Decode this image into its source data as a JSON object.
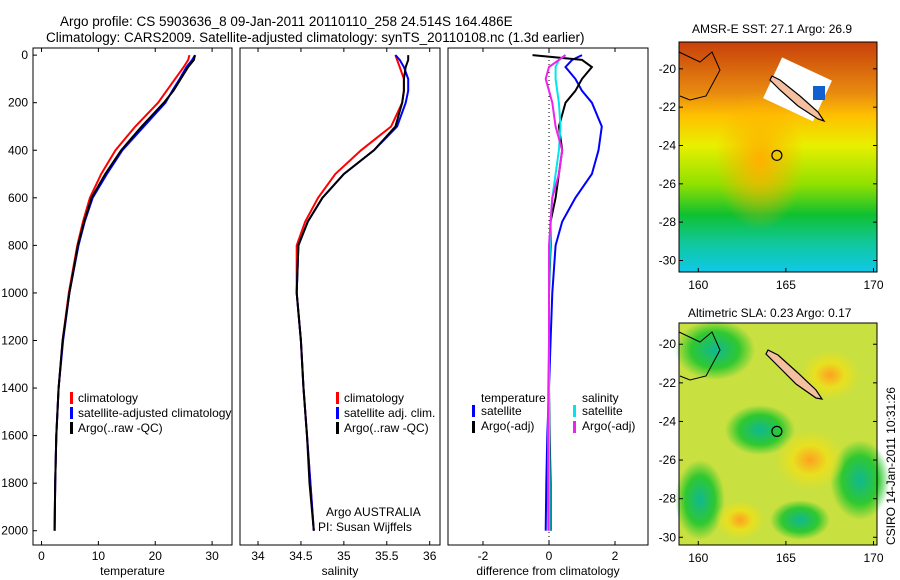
{
  "header": {
    "line1": "Argo profile: CS 5903636_8 09-Jan-2011 20110110_258 24.514S 164.486E",
    "line2": "Climatology: CARS2009. Satellite-adjusted climatology: synTS_20110108.nc (1.3d earlier)"
  },
  "footer_stamp": "CSIRO 14-Jan-2011 10:31:26",
  "colors": {
    "red": "#ff0000",
    "blue": "#0000ff",
    "black": "#000000",
    "cyan": "#00e5ee",
    "magenta": "#ee22ee"
  },
  "chart_data": [
    {
      "type": "line",
      "id": "temperature",
      "xlabel": "temperature",
      "ylabel": "",
      "xlim": [
        -1.5,
        33.5
      ],
      "ylim": [
        2060,
        -30
      ],
      "xticks": [
        0,
        10,
        20,
        30
      ],
      "yticks": [
        0,
        200,
        400,
        600,
        800,
        1000,
        1200,
        1400,
        1600,
        1800,
        2000
      ],
      "depth": [
        0,
        20,
        50,
        100,
        150,
        200,
        300,
        400,
        500,
        600,
        700,
        800,
        1000,
        1200,
        1400,
        1600,
        1800,
        2000
      ],
      "series": [
        {
          "name": "climatology",
          "color": "#ff0000",
          "values": [
            26.0,
            25.8,
            25.0,
            23.5,
            22.0,
            20.5,
            16.5,
            13.0,
            10.5,
            8.5,
            7.3,
            6.3,
            4.8,
            3.7,
            3.0,
            2.6,
            2.4,
            2.3
          ]
        },
        {
          "name": "satellite-adjusted climatology",
          "color": "#0000ff",
          "values": [
            27.0,
            26.5,
            25.5,
            24.3,
            23.0,
            21.8,
            18.0,
            14.2,
            11.5,
            9.0,
            7.6,
            6.5,
            4.9,
            3.8,
            3.0,
            2.6,
            2.4,
            2.3
          ]
        },
        {
          "name": "Argo(..raw -QC)",
          "color": "#000000",
          "values": [
            27.0,
            26.8,
            25.8,
            24.5,
            23.2,
            21.5,
            17.6,
            14.0,
            11.2,
            8.8,
            7.5,
            6.4,
            4.9,
            3.7,
            3.0,
            2.6,
            2.4,
            2.3
          ]
        }
      ],
      "legend": {
        "placement": "lower-right",
        "entries": [
          "climatology",
          "satellite-adjusted climatology",
          "Argo(..raw -QC)"
        ]
      }
    },
    {
      "type": "line",
      "id": "salinity",
      "xlabel": "salinity",
      "xlim": [
        33.79,
        36.12
      ],
      "ylim": [
        2060,
        -30
      ],
      "xticks": [
        34,
        34.5,
        35,
        35.5,
        36
      ],
      "depth": [
        0,
        20,
        50,
        100,
        150,
        200,
        300,
        400,
        500,
        600,
        700,
        800,
        1000,
        1200,
        1400,
        1600,
        1800,
        2000
      ],
      "series": [
        {
          "name": "climatology",
          "color": "#ff0000",
          "values": [
            35.6,
            35.62,
            35.65,
            35.7,
            35.7,
            35.68,
            35.55,
            35.2,
            34.9,
            34.7,
            34.55,
            34.45,
            34.45,
            34.5,
            34.53,
            34.57,
            34.61,
            34.65
          ]
        },
        {
          "name": "satellite adj. clim.",
          "color": "#0000ff",
          "values": [
            35.6,
            35.65,
            35.7,
            35.75,
            35.75,
            35.72,
            35.62,
            35.35,
            35.0,
            34.75,
            34.58,
            34.47,
            34.45,
            34.5,
            34.53,
            34.57,
            34.61,
            34.65
          ]
        },
        {
          "name": "Argo(..raw -QC)",
          "color": "#000000",
          "values": [
            35.75,
            35.75,
            35.72,
            35.7,
            35.7,
            35.68,
            35.6,
            35.35,
            35.0,
            34.75,
            34.58,
            34.47,
            34.45,
            34.5,
            34.53,
            34.57,
            34.6,
            34.65
          ]
        }
      ],
      "legend": {
        "placement": "lower-right",
        "entries": [
          "climatology",
          "satellite adj. clim.",
          "Argo(..raw -QC)"
        ]
      },
      "annotation": [
        "Argo AUSTRALIA",
        "PI: Susan Wijffels"
      ]
    },
    {
      "type": "line",
      "id": "difference",
      "xlabel": "difference from climatology",
      "xlim": [
        -3.06,
        3.0
      ],
      "ylim": [
        2060,
        -30
      ],
      "xticks": [
        -2,
        0,
        2
      ],
      "depth": [
        0,
        20,
        50,
        100,
        150,
        200,
        300,
        400,
        500,
        600,
        700,
        800,
        1000,
        1200,
        1400,
        1600,
        1800,
        2000
      ],
      "series": [
        {
          "name": "temperature satellite",
          "color": "#0000ff",
          "values": [
            1.0,
            0.7,
            0.5,
            0.8,
            1.0,
            1.3,
            1.6,
            1.5,
            1.3,
            0.8,
            0.4,
            0.2,
            0.1,
            0.05,
            0,
            -0.05,
            -0.08,
            -0.1
          ]
        },
        {
          "name": "temperature Argo(-adj)",
          "color": "#000000",
          "values": [
            -0.5,
            1.0,
            1.3,
            1.0,
            0.8,
            0.5,
            0.3,
            0.4,
            0.3,
            0.2,
            0.05,
            0.05,
            0,
            0,
            0,
            0.02,
            0.05,
            0.05
          ]
        },
        {
          "name": "salinity satellite",
          "color": "#00e5ee",
          "values": [
            0.5,
            0.3,
            0.2,
            0.2,
            0.25,
            0.3,
            0.35,
            0.3,
            0.2,
            0.1,
            0.05,
            0.03,
            0,
            0,
            0,
            0.01,
            0.02,
            0.02
          ]
        },
        {
          "name": "salinity Argo(-adj)",
          "color": "#ee22ee",
          "values": [
            0.5,
            0.3,
            0.0,
            -0.1,
            0.0,
            0.1,
            0.2,
            0.4,
            0.3,
            0.1,
            0.05,
            0.0,
            0,
            0,
            -0.02,
            -0.03,
            -0.03,
            -0.02
          ]
        }
      ],
      "legend": {
        "placement": "lower-center",
        "headers": [
          "temperature",
          "salinity"
        ],
        "entries": [
          "satellite",
          "Argo(-adj)",
          "satellite",
          "Argo(-adj)"
        ]
      }
    },
    {
      "type": "heatmap",
      "id": "sst-map",
      "title": "AMSR-E SST: 27.1 Argo: 26.9",
      "xlim": [
        158.9,
        170.2
      ],
      "ylim": [
        -30.6,
        -18.6
      ],
      "xticks": [
        160,
        165,
        170
      ],
      "yticks": [
        -20,
        -22,
        -24,
        -26,
        -28,
        -30
      ],
      "xticklabels": [
        "160",
        "165",
        "170"
      ],
      "yticklabels": [
        "-20",
        "-22",
        "-24",
        "-26",
        "-28",
        "-30"
      ],
      "marker": {
        "lon": 164.486,
        "lat": -24.514
      }
    },
    {
      "type": "heatmap",
      "id": "sla-map",
      "title": "Altimetric SLA: 0.23 Argo: 0.17",
      "xlim": [
        158.9,
        170.2
      ],
      "ylim": [
        -30.4,
        -18.9
      ],
      "xticks": [
        160,
        165,
        170
      ],
      "yticks": [
        -20,
        -22,
        -24,
        -26,
        -28,
        -30
      ],
      "xticklabels": [
        "160",
        "165",
        "170"
      ],
      "yticklabels": [
        "-20",
        "-22",
        "-24",
        "-26",
        "-28",
        "-30"
      ],
      "marker": {
        "lon": 164.486,
        "lat": -24.514
      }
    }
  ]
}
